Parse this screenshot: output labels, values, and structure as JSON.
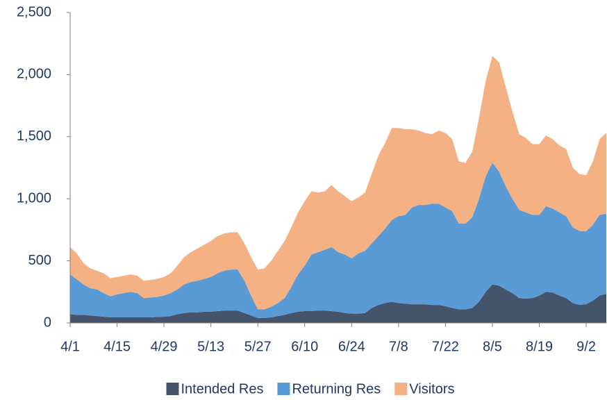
{
  "chart_data": {
    "type": "stacked_area",
    "categories": [
      "4/1",
      null,
      null,
      null,
      null,
      null,
      null,
      "4/15",
      null,
      null,
      null,
      null,
      null,
      null,
      "4/29",
      null,
      null,
      null,
      null,
      null,
      null,
      "5/13",
      null,
      null,
      null,
      null,
      null,
      null,
      "5/27",
      null,
      null,
      null,
      null,
      null,
      null,
      "6/10",
      null,
      null,
      null,
      null,
      null,
      null,
      "6/24",
      null,
      null,
      null,
      null,
      null,
      null,
      "7/8",
      null,
      null,
      null,
      null,
      null,
      null,
      "7/22",
      null,
      null,
      null,
      null,
      null,
      null,
      "8/5",
      null,
      null,
      null,
      null,
      null,
      null,
      "8/19",
      null,
      null,
      null,
      null,
      null,
      null,
      "9/2",
      null,
      null,
      null
    ],
    "series": [
      {
        "name": "Intended Res",
        "color": "#44546a",
        "values": [
          70,
          65,
          65,
          60,
          55,
          50,
          45,
          45,
          45,
          45,
          45,
          45,
          45,
          48,
          50,
          55,
          70,
          80,
          85,
          85,
          90,
          90,
          95,
          100,
          100,
          100,
          80,
          60,
          40,
          40,
          45,
          55,
          65,
          80,
          90,
          95,
          95,
          100,
          100,
          95,
          90,
          80,
          75,
          75,
          80,
          120,
          145,
          160,
          170,
          160,
          155,
          150,
          150,
          150,
          145,
          145,
          135,
          120,
          110,
          110,
          120,
          170,
          250,
          310,
          300,
          270,
          240,
          200,
          195,
          200,
          220,
          250,
          245,
          220,
          200,
          160,
          145,
          150,
          180,
          220,
          235
        ]
      },
      {
        "name": "Returning Res",
        "color": "#5b9bd5",
        "values": [
          320,
          285,
          245,
          220,
          215,
          190,
          170,
          185,
          195,
          205,
          195,
          155,
          160,
          162,
          170,
          185,
          200,
          230,
          245,
          255,
          265,
          280,
          305,
          320,
          330,
          330,
          260,
          160,
          70,
          70,
          85,
          105,
          135,
          210,
          300,
          365,
          455,
          470,
          490,
          515,
          480,
          470,
          445,
          485,
          500,
          520,
          555,
          600,
          660,
          700,
          715,
          780,
          800,
          800,
          815,
          815,
          795,
          780,
          690,
          690,
          730,
          830,
          930,
          980,
          920,
          830,
          760,
          710,
          695,
          670,
          650,
          690,
          675,
          670,
          660,
          610,
          595,
          590,
          610,
          650,
          645
        ]
      },
      {
        "name": "Visitors",
        "color": "#f4b183",
        "values": [
          220,
          210,
          170,
          160,
          150,
          160,
          145,
          140,
          140,
          140,
          140,
          140,
          140,
          145,
          150,
          160,
          190,
          220,
          240,
          260,
          275,
          290,
          300,
          300,
          300,
          300,
          300,
          310,
          320,
          330,
          370,
          420,
          460,
          480,
          500,
          520,
          510,
          480,
          470,
          500,
          490,
          470,
          460,
          450,
          470,
          560,
          650,
          690,
          740,
          710,
          690,
          630,
          600,
          580,
          560,
          590,
          600,
          580,
          500,
          490,
          530,
          650,
          770,
          860,
          880,
          800,
          700,
          610,
          600,
          570,
          570,
          570,
          560,
          540,
          540,
          480,
          460,
          450,
          510,
          610,
          650
        ]
      }
    ],
    "ylim": [
      0,
      2500
    ],
    "yticks": [
      0,
      500,
      {
        "value": 1000,
        "label": "1,000"
      },
      {
        "value": 1500,
        "label": "1,500"
      },
      {
        "value": 2000,
        "label": "2,000"
      },
      {
        "value": 2500,
        "label": "2,500"
      }
    ],
    "legend": "bottom"
  }
}
